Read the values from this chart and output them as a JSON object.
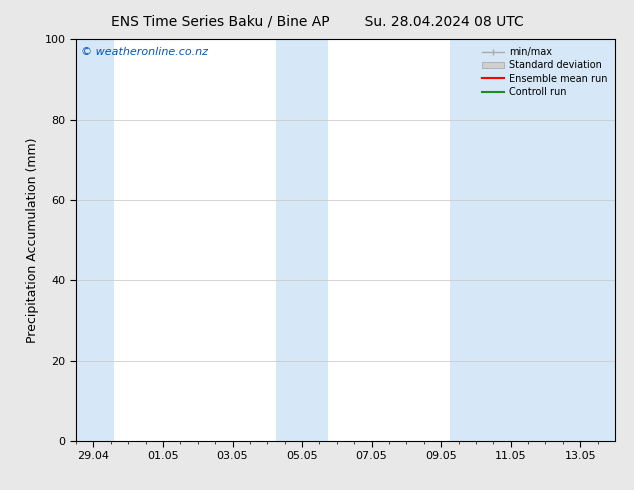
{
  "title_left": "ENS Time Series Baku / Bine AP",
  "title_right": "Su. 28.04.2024 08 UTC",
  "ylabel": "Precipitation Accumulation (mm)",
  "watermark": "© weatheronline.co.nz",
  "watermark_color": "#0055bb",
  "ylim": [
    0,
    100
  ],
  "yticks": [
    0,
    20,
    40,
    60,
    80,
    100
  ],
  "xtick_labels": [
    "29.04",
    "01.05",
    "03.05",
    "05.05",
    "07.05",
    "09.05",
    "11.05",
    "13.05"
  ],
  "xtick_positions": [
    0,
    2,
    4,
    6,
    8,
    10,
    12,
    14
  ],
  "x_min": -0.5,
  "x_max": 15.0,
  "background_color": "#e8e8e8",
  "plot_bg_color": "#ffffff",
  "shaded_color": "#d6e8f7",
  "band_ranges": [
    [
      -0.5,
      0.6
    ],
    [
      5.25,
      6.75
    ],
    [
      10.25,
      15.0
    ]
  ],
  "legend_labels": [
    "min/max",
    "Standard deviation",
    "Ensemble mean run",
    "Controll run"
  ],
  "legend_colors_line": [
    "#aaaaaa",
    "#cccccc",
    "#ff0000",
    "#228822"
  ],
  "grid_color": "#cccccc",
  "axis_color": "#000000",
  "title_fontsize": 10,
  "label_fontsize": 9,
  "tick_fontsize": 8,
  "watermark_fontsize": 8
}
